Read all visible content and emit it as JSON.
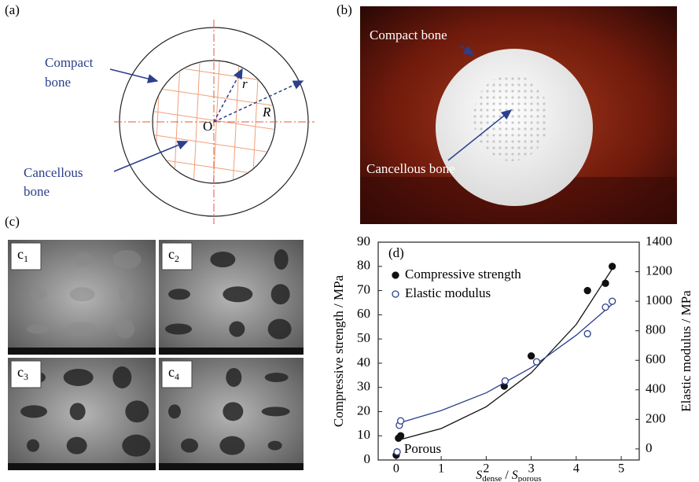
{
  "panel_a": {
    "label": "(a)",
    "compact": [
      "Compact",
      "bone"
    ],
    "cancellous": [
      "Cancellous",
      "bone"
    ],
    "origin": "O",
    "r": "r",
    "R": "R"
  },
  "panel_b": {
    "label": "(b)",
    "compact": "Compact bone",
    "cancellous": "Cancellous bone"
  },
  "panel_c": {
    "label": "(c)",
    "images": [
      {
        "letter": "c",
        "sub": "1"
      },
      {
        "letter": "c",
        "sub": "2"
      },
      {
        "letter": "c",
        "sub": "3"
      },
      {
        "letter": "c",
        "sub": "4"
      }
    ]
  },
  "chart_data": {
    "type": "scatter",
    "label": "(d)",
    "xlabel": [
      {
        "text": "S",
        "italic": true
      },
      {
        "text": "dense",
        "sub": true
      },
      {
        "text": " / "
      },
      {
        "text": "S",
        "italic": true
      },
      {
        "text": "porous",
        "sub": true
      }
    ],
    "ylabel": "Compressive strength / MPa",
    "y2label": "Elastic modulus / MPa",
    "xlim": [
      -0.4,
      5.4
    ],
    "xticks": [
      0,
      1,
      2,
      3,
      4,
      5
    ],
    "ylim": [
      0,
      90
    ],
    "yticks": [
      0,
      10,
      20,
      30,
      40,
      50,
      60,
      70,
      80,
      90
    ],
    "y2lim": [
      -75,
      1400
    ],
    "y2ticks": [
      0,
      200,
      400,
      600,
      800,
      1000,
      1200,
      1400
    ],
    "legend": "upper left",
    "annotation": "Porous",
    "series": [
      {
        "name": "Compressive strength",
        "color": "#111111",
        "marker": "filled",
        "x": [
          0,
          0.05,
          0.1,
          2.4,
          3.0,
          4.25,
          4.65,
          4.8
        ],
        "values": [
          2,
          9,
          10,
          30.5,
          43,
          70,
          73,
          80
        ],
        "fit_x": [
          0,
          1,
          2,
          3,
          4,
          4.8
        ],
        "fit_values": [
          8,
          13,
          22,
          36,
          56,
          79
        ]
      },
      {
        "name": "Elastic modulus",
        "color": "#2b3f8c",
        "marker": "open",
        "axis": "y2",
        "x": [
          0.02,
          0.07,
          0.1,
          2.42,
          3.12,
          4.25,
          4.65,
          4.8
        ],
        "values": [
          -20,
          160,
          190,
          460,
          590,
          780,
          960,
          1000
        ],
        "fit_x": [
          0,
          1,
          2,
          3,
          4,
          4.8
        ],
        "fit_values": [
          170,
          260,
          380,
          550,
          770,
          980
        ]
      }
    ]
  }
}
